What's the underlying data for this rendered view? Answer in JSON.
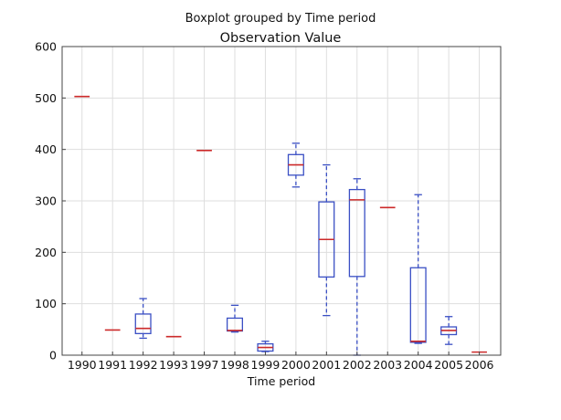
{
  "chart_data": {
    "type": "boxplot",
    "suptitle": "Boxplot grouped by Time period",
    "title": "Observation Value",
    "xlabel": "Time period",
    "ylabel": "",
    "ylim": [
      0,
      600
    ],
    "yticks": [
      0,
      100,
      200,
      300,
      400,
      500,
      600
    ],
    "grid": true,
    "colors": {
      "box": "#3a4fc4",
      "median": "#cc2a2a",
      "whisker": "#3a4fc4",
      "grid": "#dedede",
      "axis": "#444444"
    },
    "boxes": [
      {
        "label": "1990",
        "whislo": 503,
        "q1": 503,
        "med": 503,
        "q3": 503,
        "whishi": 503
      },
      {
        "label": "1991",
        "whislo": 49,
        "q1": 49,
        "med": 49,
        "q3": 49,
        "whishi": 49
      },
      {
        "label": "1992",
        "whislo": 33,
        "q1": 42,
        "med": 52,
        "q3": 80,
        "whishi": 110
      },
      {
        "label": "1993",
        "whislo": 36,
        "q1": 36,
        "med": 36,
        "q3": 36,
        "whishi": 36
      },
      {
        "label": "1997",
        "whislo": 398,
        "q1": 398,
        "med": 398,
        "q3": 398,
        "whishi": 398
      },
      {
        "label": "1998",
        "whislo": 45,
        "q1": 47,
        "med": 48,
        "q3": 72,
        "whishi": 97
      },
      {
        "label": "1999",
        "whislo": 7,
        "q1": 8,
        "med": 15,
        "q3": 22,
        "whishi": 27
      },
      {
        "label": "2000",
        "whislo": 327,
        "q1": 350,
        "med": 370,
        "q3": 390,
        "whishi": 412
      },
      {
        "label": "2001",
        "whislo": 77,
        "q1": 152,
        "med": 225,
        "q3": 298,
        "whishi": 370
      },
      {
        "label": "2002",
        "whislo": 0,
        "q1": 153,
        "med": 302,
        "q3": 322,
        "whishi": 343
      },
      {
        "label": "2003",
        "whislo": 287,
        "q1": 287,
        "med": 287,
        "q3": 287,
        "whishi": 287
      },
      {
        "label": "2004",
        "whislo": 23,
        "q1": 25,
        "med": 27,
        "q3": 170,
        "whishi": 312
      },
      {
        "label": "2005",
        "whislo": 21,
        "q1": 40,
        "med": 48,
        "q3": 55,
        "whishi": 75
      },
      {
        "label": "2006",
        "whislo": 6,
        "q1": 6,
        "med": 6,
        "q3": 6,
        "whishi": 6
      }
    ]
  }
}
